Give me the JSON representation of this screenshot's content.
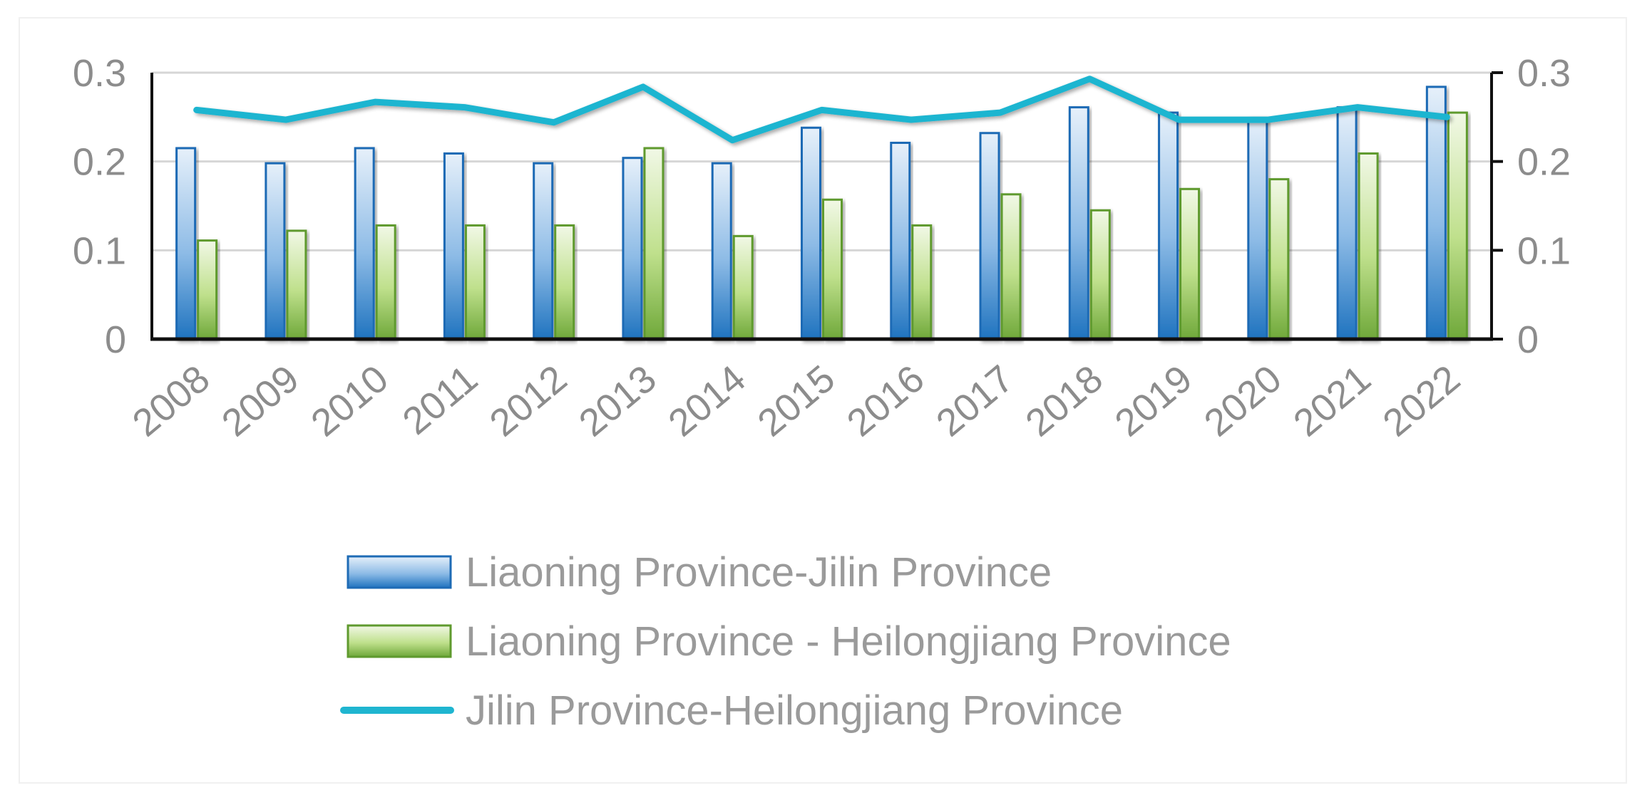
{
  "chart_data": {
    "type": "bar",
    "categories": [
      "2008",
      "2009",
      "2010",
      "2011",
      "2012",
      "2013",
      "2014",
      "2015",
      "2016",
      "2017",
      "2018",
      "2019",
      "2020",
      "2021",
      "2022"
    ],
    "series": [
      {
        "name": "Liaoning Province-Jilin Province",
        "type": "bar",
        "color": "#2a7fc7",
        "values": [
          0.215,
          0.198,
          0.215,
          0.209,
          0.198,
          0.204,
          0.198,
          0.238,
          0.221,
          0.232,
          0.261,
          0.255,
          0.249,
          0.261,
          0.284
        ]
      },
      {
        "name": "Liaoning Province - Heilongjiang Province",
        "type": "bar",
        "color": "#7cb342",
        "values": [
          0.111,
          0.122,
          0.128,
          0.128,
          0.128,
          0.215,
          0.116,
          0.157,
          0.128,
          0.163,
          0.145,
          0.169,
          0.18,
          0.209,
          0.255
        ]
      },
      {
        "name": "Jilin Province-Heilongjiang Province",
        "type": "line",
        "color": "#1fb5d0",
        "values": [
          0.258,
          0.247,
          0.267,
          0.261,
          0.244,
          0.284,
          0.224,
          0.258,
          0.247,
          0.255,
          0.293,
          0.247,
          0.247,
          0.261,
          0.25
        ]
      }
    ],
    "yticks": [
      "0",
      "0.1",
      "0.2",
      "0.3"
    ],
    "ylim": [
      0,
      0.3
    ],
    "grid": true,
    "legend_position": "bottom",
    "title": "",
    "xlabel": "",
    "ylabel": ""
  }
}
